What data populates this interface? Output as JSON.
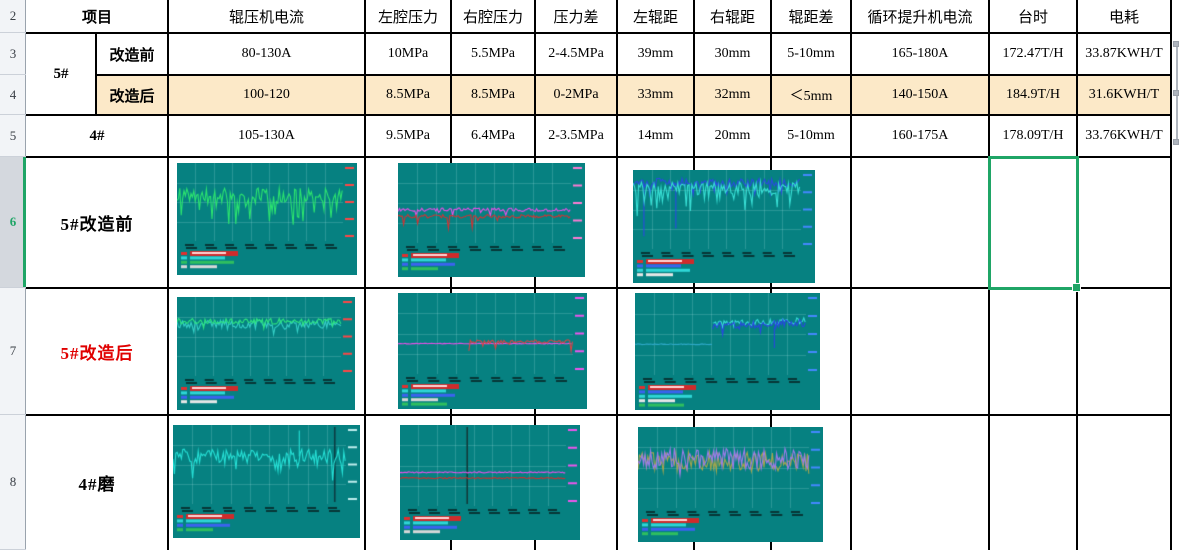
{
  "colors": {
    "selection_green": "#1FA566",
    "highlight_row_bg": "#FCE9C8",
    "modified_label_red": "#E00000",
    "chart_background": "#068181",
    "grid_border": "#000000",
    "row_header_bg": "#F2F4F7"
  },
  "row_headers": [
    "2",
    "3",
    "4",
    "5",
    "6",
    "7",
    "8"
  ],
  "selection": {
    "row_header": "6",
    "column_header": "台时",
    "cell_value": ""
  },
  "table": {
    "header": [
      "项目",
      "辊压机电流",
      "左腔压力",
      "右腔压力",
      "压力差",
      "左辊距",
      "右辊距",
      "辊距差",
      "循环提升机电流",
      "台时",
      "电耗"
    ],
    "rows": [
      {
        "group": "5#",
        "label": "改造前",
        "highlight": false,
        "values": [
          "80-130A",
          "10MPa",
          "5.5MPa",
          "2-4.5MPa",
          "39mm",
          "30mm",
          "5-10mm",
          "165-180A",
          "172.47T/H",
          "33.87KWH/T"
        ]
      },
      {
        "group": "5#",
        "label": "改造后",
        "highlight": true,
        "values": [
          "100-120",
          "8.5MPa",
          "8.5MPa",
          "0-2MPa",
          "33mm",
          "32mm",
          "＜5mm",
          "140-150A",
          "184.9T/H",
          "31.6KWH/T"
        ]
      },
      {
        "group": "4#",
        "label": "",
        "highlight": false,
        "values": [
          "105-130A",
          "9.5MPa",
          "6.4MPa",
          "2-3.5MPa",
          "14mm",
          "20mm",
          "5-10mm",
          "160-175A",
          "178.09T/H",
          "33.76KWH/T"
        ]
      }
    ],
    "chart_rows": [
      {
        "label": "5#改造前",
        "label_color": "#000000"
      },
      {
        "label": "5#改造后",
        "label_color": "#E00000"
      },
      {
        "label": "4#磨",
        "label_color": "#000000"
      }
    ]
  },
  "chart_data": [
    {
      "id": "r6c1",
      "type": "line",
      "row": "5#改造前",
      "metric": "辊压机电流",
      "background": "#068181",
      "axis_color": "#FF4646",
      "x_tick_count": 8,
      "legend_hot": true,
      "legend_colors": [
        "#E03030",
        "#2FD7D7",
        "#2FBF5F",
        "#D8D8D8",
        "#3B63F0",
        "#2FBF5F"
      ],
      "series": [
        {
          "color": "#2CE46F",
          "base": 0.42,
          "noise": 0.1,
          "spike_p": 0.22,
          "spike_depth": 0.38
        }
      ]
    },
    {
      "id": "r6c2",
      "type": "line",
      "row": "5#改造前",
      "metric": "左/右腔压力",
      "background": "#068181",
      "axis_color": "#FF7BD5",
      "x_tick_count": 8,
      "legend_hot": true,
      "legend_colors": [
        "#E03030",
        "#2FD7D7",
        "#3B63F0",
        "#2FBF5F",
        "#E8E8E8",
        "#E6E651",
        "#E049E0",
        "#2FD7D7",
        "#A061F0"
      ],
      "series": [
        {
          "color": "#E84FE8",
          "base": 0.585,
          "noise": 0.022,
          "spike_p": 0.05,
          "spike_depth": 0.07
        },
        {
          "color": "#CF3333",
          "base": 0.665,
          "noise": 0.022,
          "spike_p": 0.06,
          "spike_depth": 0.14
        }
      ]
    },
    {
      "id": "r6c3",
      "type": "line",
      "row": "5#改造前",
      "metric": "左/右辊距",
      "background": "#068181",
      "axis_color": "#4488FF",
      "x_tick_count": 8,
      "legend_hot": true,
      "legend_colors": [
        "#E03030",
        "#3B63F0",
        "#2FD7D7",
        "#E8E8E8",
        "#E03030",
        "#2FD7D7"
      ],
      "series": [
        {
          "color": "#2B4AE2",
          "base": 0.16,
          "noise": 0.055,
          "spike_p": 0.12,
          "spike_depth": 0.16,
          "big_spikes": [
            {
              "x": 0.065,
              "depth": 0.68
            },
            {
              "x": 0.255,
              "depth": 0.58
            }
          ]
        },
        {
          "color": "#38DFD5",
          "base": 0.225,
          "noise": 0.075,
          "spike_p": 0.2,
          "spike_depth": 0.3
        }
      ]
    },
    {
      "id": "r7c1",
      "type": "line",
      "row": "5#改造后",
      "metric": "辊压机电流",
      "background": "#068181",
      "axis_color": "#FF4646",
      "x_tick_count": 8,
      "legend_hot": true,
      "legend_colors": [
        "#E03030",
        "#2FD7D7",
        "#3B63F0",
        "#E8E8E8",
        "#2FBF5F",
        "#2FD7D7"
      ],
      "series": [
        {
          "color": "#35CFC6",
          "base": 0.345,
          "noise": 0.05,
          "spike_p": 0.1,
          "spike_depth": 0.1
        },
        {
          "color": "#2FE57F",
          "base": 0.305,
          "noise": 0.035,
          "spike_p": 0.05,
          "spike_depth": 0.06
        }
      ]
    },
    {
      "id": "r7c2",
      "type": "line",
      "row": "5#改造后",
      "metric": "左/右腔压力",
      "background": "#068181",
      "axis_color": "#EE55EE",
      "x_tick_count": 8,
      "legend_hot": true,
      "legend_colors": [
        "#E03030",
        "#2FD7D7",
        "#3B63F0",
        "#D8D8D8",
        "#2FBF5F",
        "#E049E0"
      ],
      "series": [
        {
          "color": "#E84FE8",
          "base": 0.625,
          "noise": 0.004
        },
        {
          "color": "#D94444",
          "base": 0.6,
          "noise": 0.022,
          "from": 0.405,
          "spike_p": 0.05,
          "spike_depth": 0.13
        }
      ]
    },
    {
      "id": "r7c3",
      "type": "line",
      "row": "5#改造后",
      "metric": "左/右辊距",
      "background": "#068181",
      "axis_color": "#4488FF",
      "x_tick_count": 8,
      "legend_hot": true,
      "legend_colors": [
        "#E03030",
        "#3B63F0",
        "#2FD7D7",
        "#E8E8E8",
        "#2FBF5F",
        "#E049E0"
      ],
      "series": [
        {
          "color": "#2FA9C9",
          "base": 0.625,
          "noise": 0.005,
          "to": 0.455
        },
        {
          "color": "#39DADA",
          "base": 0.385,
          "noise": 0.04,
          "from": 0.455,
          "drift": -0.05
        },
        {
          "color": "#2947E0",
          "base": 0.41,
          "noise": 0.05,
          "from": 0.455,
          "drift": -0.05,
          "spike_p": 0.06,
          "spike_depth": 0.18,
          "big_spikes": [
            {
              "x": 0.815,
              "depth": 0.26
            }
          ]
        }
      ]
    },
    {
      "id": "r8c1",
      "type": "line",
      "row": "4#磨",
      "metric": "辊压机电流",
      "background": "#068181",
      "axis_color": "#BFEEEE",
      "x_tick_count": 8,
      "legend_hot": true,
      "legend_colors": [
        "#E03030",
        "#2FD7D7",
        "#3B63F0",
        "#2FBF5F",
        "#E8E8E8",
        "#E049E0"
      ],
      "vlines": [
        {
          "x": 0.935,
          "color": "#0B3D44"
        }
      ],
      "series": [
        {
          "color": "#26DFD5",
          "base": 0.4,
          "noise": 0.095,
          "spike_p": 0.18,
          "spike_depth": 0.28,
          "big_spikes": [
            {
              "x": 0.73,
              "depth": -0.33
            }
          ]
        }
      ]
    },
    {
      "id": "r8c2",
      "type": "line",
      "row": "4#磨",
      "metric": "左/右腔压力",
      "background": "#068181",
      "axis_color": "#EE55EE",
      "x_tick_count": 8,
      "legend_hot": true,
      "legend_colors": [
        "#E03030",
        "#2FD7D7",
        "#3B63F0",
        "#D8D8D8",
        "#2FBF5F",
        "#2FD7D7"
      ],
      "vlines": [
        {
          "x": 0.405,
          "color": "#123A3A"
        }
      ],
      "series": [
        {
          "color": "#E84FE8",
          "base": 0.585,
          "noise": 0.007
        },
        {
          "color": "#CC3030",
          "base": 0.655,
          "noise": 0.008
        }
      ]
    },
    {
      "id": "r8c3",
      "type": "line",
      "row": "4#磨",
      "metric": "左/右辊距",
      "background": "#068181",
      "axis_color": "#4488FF",
      "x_tick_count": 8,
      "legend_hot": true,
      "legend_colors": [
        "#E03030",
        "#2FD7D7",
        "#3B63F0",
        "#2FBF5F",
        "#E8E8E8",
        "#E049E0"
      ],
      "series": [
        {
          "color": "#A4A54D",
          "base": 0.43,
          "noise": 0.12,
          "spike_p": 0.1,
          "spike_depth": 0.12
        },
        {
          "color": "#9D7BEA",
          "base": 0.39,
          "noise": 0.13,
          "spike_p": 0.1,
          "spike_depth": 0.12
        }
      ]
    }
  ]
}
